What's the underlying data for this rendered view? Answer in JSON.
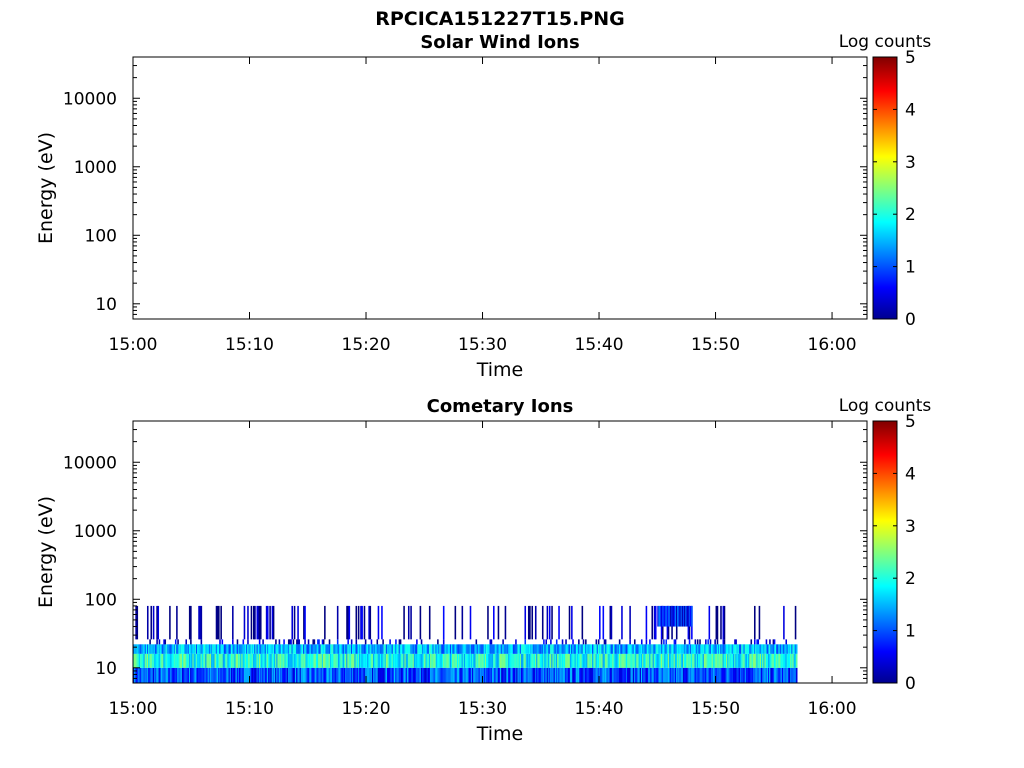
{
  "figure": {
    "title": "RPCICA151227T15.PNG"
  },
  "colorbar": {
    "label": "Log counts",
    "range": [
      0,
      5
    ],
    "ticks": [
      "0",
      "1",
      "2",
      "3",
      "4",
      "5"
    ],
    "colormap": "jet",
    "stops": [
      "#00008f",
      "#0000ff",
      "#00ffff",
      "#ffff00",
      "#ff0000",
      "#800000"
    ]
  },
  "chart_data": [
    {
      "type": "heatmap",
      "title": "Solar Wind Ions",
      "xlabel": "Time",
      "ylabel": "Energy (eV)",
      "yscale": "log",
      "ylim": [
        6,
        40000
      ],
      "xlim": [
        "15:00",
        "16:03"
      ],
      "xticks": [
        "15:00",
        "15:10",
        "15:20",
        "15:30",
        "15:40",
        "15:50",
        "16:00"
      ],
      "yticks": [
        "10",
        "100",
        "1000",
        "10000"
      ],
      "bands": []
    },
    {
      "type": "heatmap",
      "title": "Cometary Ions",
      "xlabel": "Time",
      "ylabel": "Energy (eV)",
      "yscale": "log",
      "ylim": [
        6,
        40000
      ],
      "xlim": [
        "15:00",
        "16:03"
      ],
      "xticks": [
        "15:00",
        "15:10",
        "15:20",
        "15:30",
        "15:40",
        "15:50",
        "16:00"
      ],
      "yticks": [
        "10",
        "100",
        "1000",
        "10000"
      ],
      "bands": [
        {
          "t_start": "15:00",
          "t_end": "15:57",
          "e_low": 6,
          "e_high": 10,
          "log_counts": 1.0
        },
        {
          "t_start": "15:00",
          "t_end": "15:57",
          "e_low": 10,
          "e_high": 16,
          "log_counts": 2.0
        },
        {
          "t_start": "15:00",
          "t_end": "15:57",
          "e_low": 16,
          "e_high": 22,
          "log_counts": 1.5
        },
        {
          "t_start": "15:00",
          "t_end": "15:57",
          "e_low": 22,
          "e_high": 26,
          "log_counts": 0.3
        },
        {
          "t_start": "15:00",
          "t_end": "15:57",
          "e_low": 26,
          "e_high": 80,
          "log_counts": 0.1
        },
        {
          "t_start": "15:45",
          "t_end": "15:48",
          "e_low": 40,
          "e_high": 80,
          "log_counts": 0.8
        }
      ]
    }
  ]
}
